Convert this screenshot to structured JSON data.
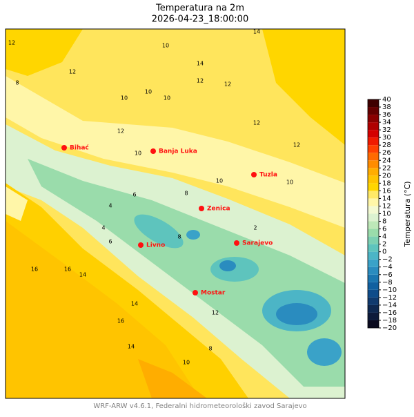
{
  "header": {
    "title": "Temperatura na 2m",
    "subtitle": "2026-04-23_18:00:00"
  },
  "cities": [
    "Bihać",
    "Banja Luka",
    "Tuzla",
    "Zenica",
    "Livno",
    "Sarajevo",
    "Mostar"
  ],
  "contour_labels": [
    "12",
    "10",
    "12",
    "14",
    "12",
    "10",
    "12",
    "8",
    "10",
    "10",
    "12",
    "14",
    "10",
    "12",
    "12",
    "4",
    "6",
    "8",
    "10",
    "10",
    "6",
    "4",
    "8",
    "2",
    "16",
    "16",
    "14",
    "14",
    "12",
    "16",
    "8",
    "10",
    "14"
  ],
  "colorbar": {
    "label": "Temperatura (°C)",
    "colors": [
      "#0a0a1e",
      "#0d1a3a",
      "#0e2850",
      "#103a6e",
      "#0f4c8a",
      "#1060a0",
      "#1a76b0",
      "#2a8cbf",
      "#3aa2c8",
      "#4cb5c6",
      "#5ec4bd",
      "#7cd0b2",
      "#9adcab",
      "#bde8b8",
      "#dcf2d0",
      "#f3f9d2",
      "#fff6a8",
      "#ffe967",
      "#ffd600",
      "#ffc400",
      "#ffad00",
      "#ff8c00",
      "#ff6a00",
      "#ff4000",
      "#f01a00",
      "#d40000",
      "#b00000",
      "#8a0000",
      "#640000",
      "#3e0000"
    ],
    "ticks": [
      {
        "value": -20,
        "label": "−20"
      },
      {
        "value": -18,
        "label": "−18"
      },
      {
        "value": -16,
        "label": "−16"
      },
      {
        "value": -14,
        "label": "−14"
      },
      {
        "value": -12,
        "label": "−12"
      },
      {
        "value": -10,
        "label": "−10"
      },
      {
        "value": -8,
        "label": "−8"
      },
      {
        "value": -6,
        "label": "−6"
      },
      {
        "value": -4,
        "label": "−4"
      },
      {
        "value": -2,
        "label": "−2"
      },
      0,
      2,
      4,
      6,
      8,
      10,
      12,
      14,
      16,
      18,
      20,
      22,
      24,
      26,
      28,
      30,
      32,
      34,
      36,
      38,
      40
    ]
  },
  "footer": "WRF-ARW v4.6.1, Federalni hidrometeorološki zavod Sarajevo"
}
